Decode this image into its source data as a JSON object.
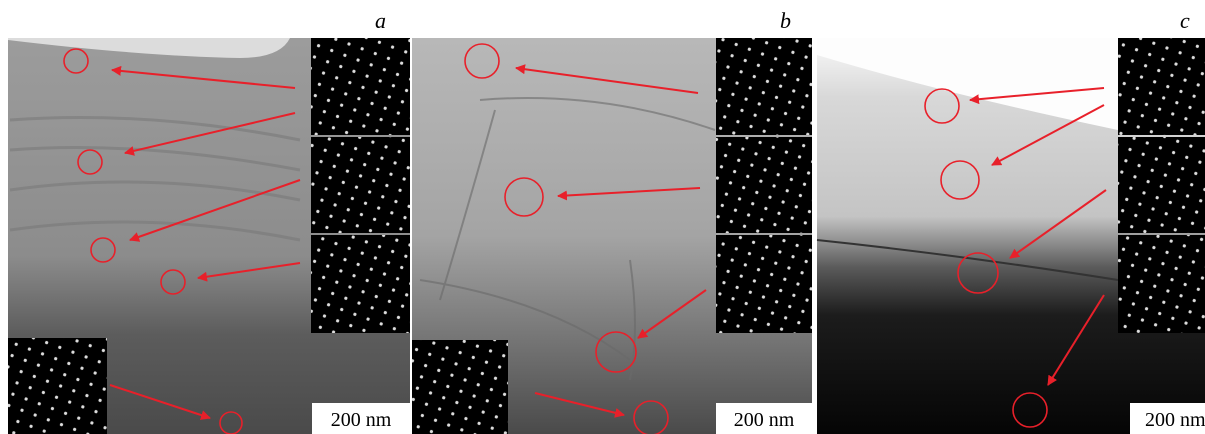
{
  "panels": [
    {
      "label": "a",
      "scale_bar": "200 nm"
    },
    {
      "label": "b",
      "scale_bar": "200 nm"
    },
    {
      "label": "c",
      "scale_bar": "200 nm"
    }
  ]
}
